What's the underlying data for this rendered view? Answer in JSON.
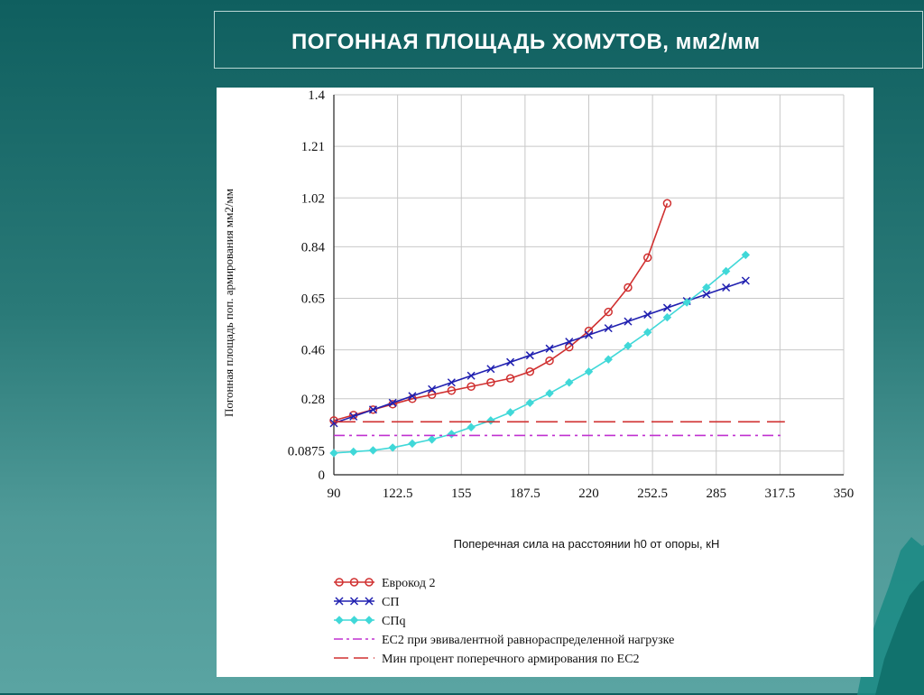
{
  "slide": {
    "title": "ПОГОННАЯ ПЛОЩАДЬ ХОМУТОВ, мм2/мм"
  },
  "colors": {
    "background": "#0f5f5f",
    "eurocode": "#d03030",
    "sp": "#2020b0",
    "spq": "#40d8d8",
    "ec2_equiv": "#c030d0",
    "min_percent": "#d03030"
  },
  "chart_data": {
    "type": "line",
    "title": "",
    "xlabel": "Поперечная сила на расстоянии h0 от опоры, кН",
    "ylabel": "Погонная площадь поп. армирования мм2/мм",
    "xlim": [
      90,
      350
    ],
    "ylim": [
      0,
      1.4
    ],
    "x_ticks": [
      "90",
      "122.5",
      "155",
      "187.5",
      "220",
      "252.5",
      "285",
      "317.5",
      "350"
    ],
    "y_ticks": [
      "0",
      "0.0875",
      "0.28",
      "0.46",
      "0.65",
      "0.84",
      "1.02",
      "1.21",
      "1.4"
    ],
    "grid": true,
    "legend_position": "bottom",
    "series": [
      {
        "name": "Еврокод 2",
        "style": "line-circle",
        "x": [
          90,
          100,
          110,
          120,
          130,
          140,
          150,
          160,
          170,
          180,
          190,
          200,
          210,
          220,
          230,
          240,
          250,
          260
        ],
        "y": [
          0.2,
          0.22,
          0.24,
          0.26,
          0.28,
          0.295,
          0.31,
          0.325,
          0.34,
          0.355,
          0.38,
          0.42,
          0.47,
          0.53,
          0.6,
          0.69,
          0.8,
          1.0
        ]
      },
      {
        "name": "СП",
        "style": "line-x",
        "x": [
          90,
          100,
          110,
          120,
          130,
          140,
          150,
          160,
          170,
          180,
          190,
          200,
          210,
          220,
          230,
          240,
          250,
          260,
          270,
          280,
          290,
          300
        ],
        "y": [
          0.19,
          0.215,
          0.24,
          0.265,
          0.29,
          0.315,
          0.34,
          0.365,
          0.39,
          0.415,
          0.44,
          0.465,
          0.49,
          0.515,
          0.54,
          0.565,
          0.59,
          0.615,
          0.64,
          0.665,
          0.69,
          0.715
        ]
      },
      {
        "name": "СПq",
        "style": "line-diamond",
        "x": [
          90,
          100,
          110,
          120,
          130,
          140,
          150,
          160,
          170,
          180,
          190,
          200,
          210,
          220,
          230,
          240,
          250,
          260,
          270,
          280,
          290,
          300
        ],
        "y": [
          0.08,
          0.085,
          0.09,
          0.1,
          0.115,
          0.13,
          0.15,
          0.175,
          0.2,
          0.23,
          0.265,
          0.3,
          0.34,
          0.38,
          0.425,
          0.475,
          0.525,
          0.58,
          0.635,
          0.69,
          0.75,
          0.81
        ]
      },
      {
        "name": "ЕС2 при эвивалентной равнораспределенной нагрузке",
        "style": "dash-dot",
        "x": [
          90,
          320
        ],
        "y": [
          0.145,
          0.145
        ]
      },
      {
        "name": "Мин процент поперечного армирования по ЕС2",
        "style": "long-dash",
        "x": [
          90,
          320
        ],
        "y": [
          0.195,
          0.195
        ]
      }
    ]
  }
}
